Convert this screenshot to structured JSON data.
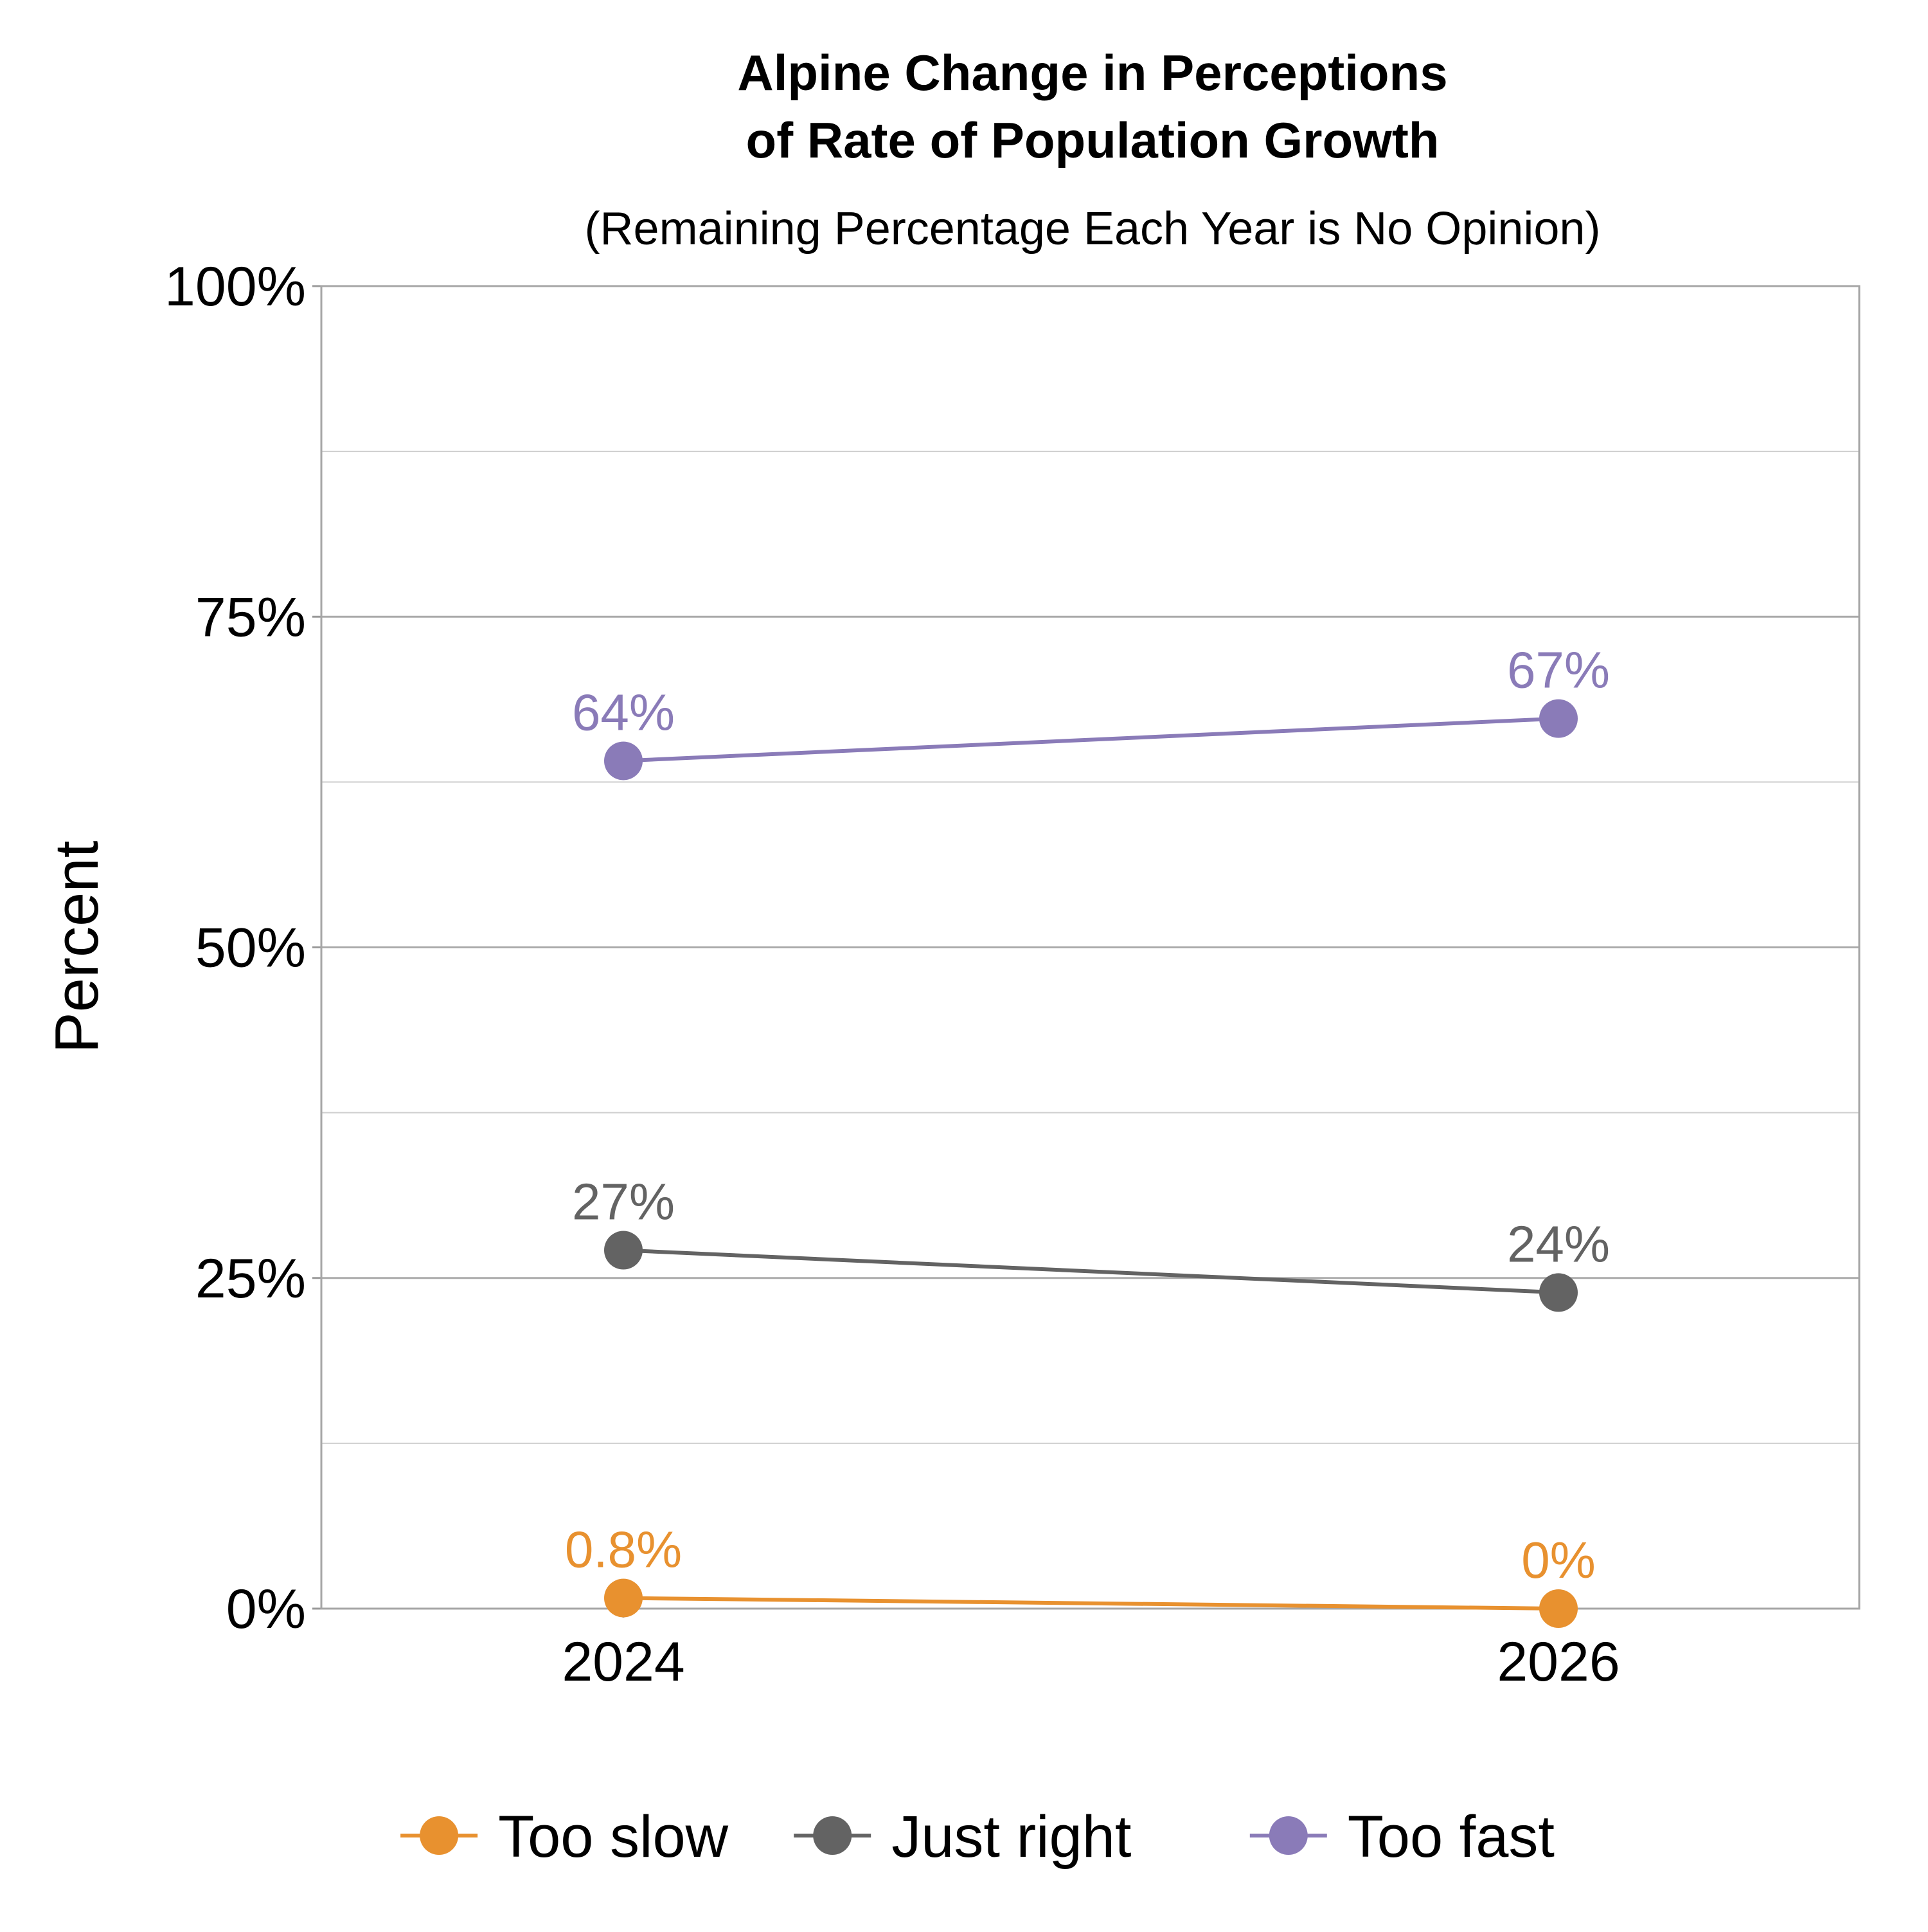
{
  "chart_data": {
    "type": "line",
    "title_lines": [
      "Alpine Change in Perceptions",
      "of Rate of Population Growth"
    ],
    "subtitle": "(Remaining Percentage Each Year is No Opinion)",
    "xlabel": "",
    "ylabel": "Percent",
    "categories": [
      "2024",
      "2026"
    ],
    "ylim": [
      0,
      100
    ],
    "y_major_ticks": [
      0,
      25,
      50,
      75,
      100
    ],
    "y_major_tick_labels": [
      "0%",
      "25%",
      "50%",
      "75%",
      "100%"
    ],
    "y_minor_gridlines": [
      12.5,
      37.5,
      62.5,
      87.5
    ],
    "grid": true,
    "legend_position": "bottom",
    "series": [
      {
        "name": "Too slow",
        "color": "#E8912F",
        "values": [
          0.8,
          0
        ],
        "labels": [
          "0.8%",
          "0%"
        ]
      },
      {
        "name": "Just right",
        "color": "#636363",
        "values": [
          27.1,
          23.9
        ],
        "labels": [
          "27%",
          "24%"
        ]
      },
      {
        "name": "Too fast",
        "color": "#8A7BB8",
        "values": [
          64.1,
          67.3
        ],
        "labels": [
          "64%",
          "67%"
        ]
      }
    ]
  }
}
